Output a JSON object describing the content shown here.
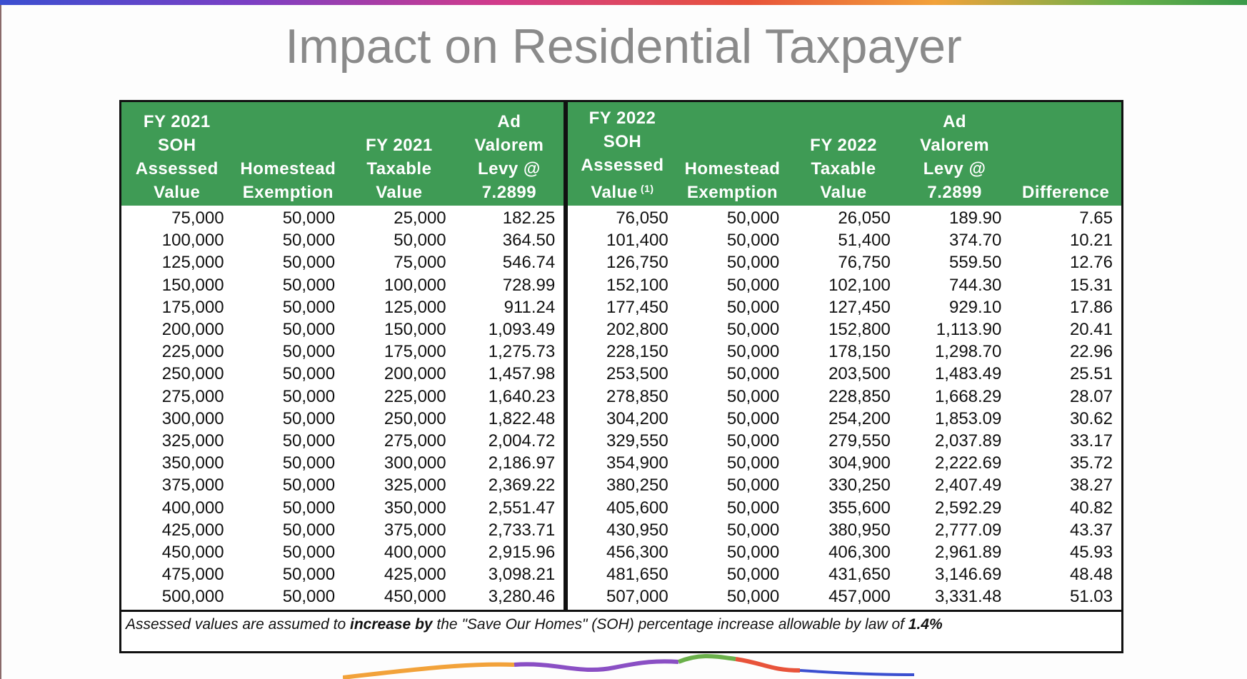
{
  "title": "Impact on Residential Taxpayer",
  "table": {
    "headers": [
      [
        "FY 2021",
        "SOH",
        "Assessed",
        "Value"
      ],
      [
        "Homestead",
        "Exemption"
      ],
      [
        "FY 2021",
        "Taxable",
        "Value"
      ],
      [
        "Ad",
        "Valorem",
        "Levy @",
        "7.2899"
      ],
      [
        "FY 2022",
        "SOH",
        "Assessed",
        "Value"
      ],
      [
        "Homestead",
        "Exemption"
      ],
      [
        "FY 2022",
        "Taxable",
        "Value"
      ],
      [
        "Ad",
        "Valorem",
        "Levy @",
        "7.2899"
      ],
      [
        "Difference"
      ]
    ],
    "header_footnote_marker": "(1)",
    "rows": [
      [
        "75,000",
        "50,000",
        "25,000",
        "182.25",
        "76,050",
        "50,000",
        "26,050",
        "189.90",
        "7.65"
      ],
      [
        "100,000",
        "50,000",
        "50,000",
        "364.50",
        "101,400",
        "50,000",
        "51,400",
        "374.70",
        "10.21"
      ],
      [
        "125,000",
        "50,000",
        "75,000",
        "546.74",
        "126,750",
        "50,000",
        "76,750",
        "559.50",
        "12.76"
      ],
      [
        "150,000",
        "50,000",
        "100,000",
        "728.99",
        "152,100",
        "50,000",
        "102,100",
        "744.30",
        "15.31"
      ],
      [
        "175,000",
        "50,000",
        "125,000",
        "911.24",
        "177,450",
        "50,000",
        "127,450",
        "929.10",
        "17.86"
      ],
      [
        "200,000",
        "50,000",
        "150,000",
        "1,093.49",
        "202,800",
        "50,000",
        "152,800",
        "1,113.90",
        "20.41"
      ],
      [
        "225,000",
        "50,000",
        "175,000",
        "1,275.73",
        "228,150",
        "50,000",
        "178,150",
        "1,298.70",
        "22.96"
      ],
      [
        "250,000",
        "50,000",
        "200,000",
        "1,457.98",
        "253,500",
        "50,000",
        "203,500",
        "1,483.49",
        "25.51"
      ],
      [
        "275,000",
        "50,000",
        "225,000",
        "1,640.23",
        "278,850",
        "50,000",
        "228,850",
        "1,668.29",
        "28.07"
      ],
      [
        "300,000",
        "50,000",
        "250,000",
        "1,822.48",
        "304,200",
        "50,000",
        "254,200",
        "1,853.09",
        "30.62"
      ],
      [
        "325,000",
        "50,000",
        "275,000",
        "2,004.72",
        "329,550",
        "50,000",
        "279,550",
        "2,037.89",
        "33.17"
      ],
      [
        "350,000",
        "50,000",
        "300,000",
        "2,186.97",
        "354,900",
        "50,000",
        "304,900",
        "2,222.69",
        "35.72"
      ],
      [
        "375,000",
        "50,000",
        "325,000",
        "2,369.22",
        "380,250",
        "50,000",
        "330,250",
        "2,407.49",
        "38.27"
      ],
      [
        "400,000",
        "50,000",
        "350,000",
        "2,551.47",
        "405,600",
        "50,000",
        "355,600",
        "2,592.29",
        "40.82"
      ],
      [
        "425,000",
        "50,000",
        "375,000",
        "2,733.71",
        "430,950",
        "50,000",
        "380,950",
        "2,777.09",
        "43.37"
      ],
      [
        "450,000",
        "50,000",
        "400,000",
        "2,915.96",
        "456,300",
        "50,000",
        "406,300",
        "2,961.89",
        "45.93"
      ],
      [
        "475,000",
        "50,000",
        "425,000",
        "3,098.21",
        "481,650",
        "50,000",
        "431,650",
        "3,146.69",
        "48.48"
      ],
      [
        "500,000",
        "50,000",
        "450,000",
        "3,280.46",
        "507,000",
        "50,000",
        "457,000",
        "3,331.48",
        "51.03"
      ]
    ]
  },
  "note": {
    "part1": "Assessed values  are assumed to ",
    "bold1": "increase by",
    "part2": " the \"Save Our Homes\" (SOH) percentage increase allowable by law of ",
    "bold2": "1.4%"
  }
}
